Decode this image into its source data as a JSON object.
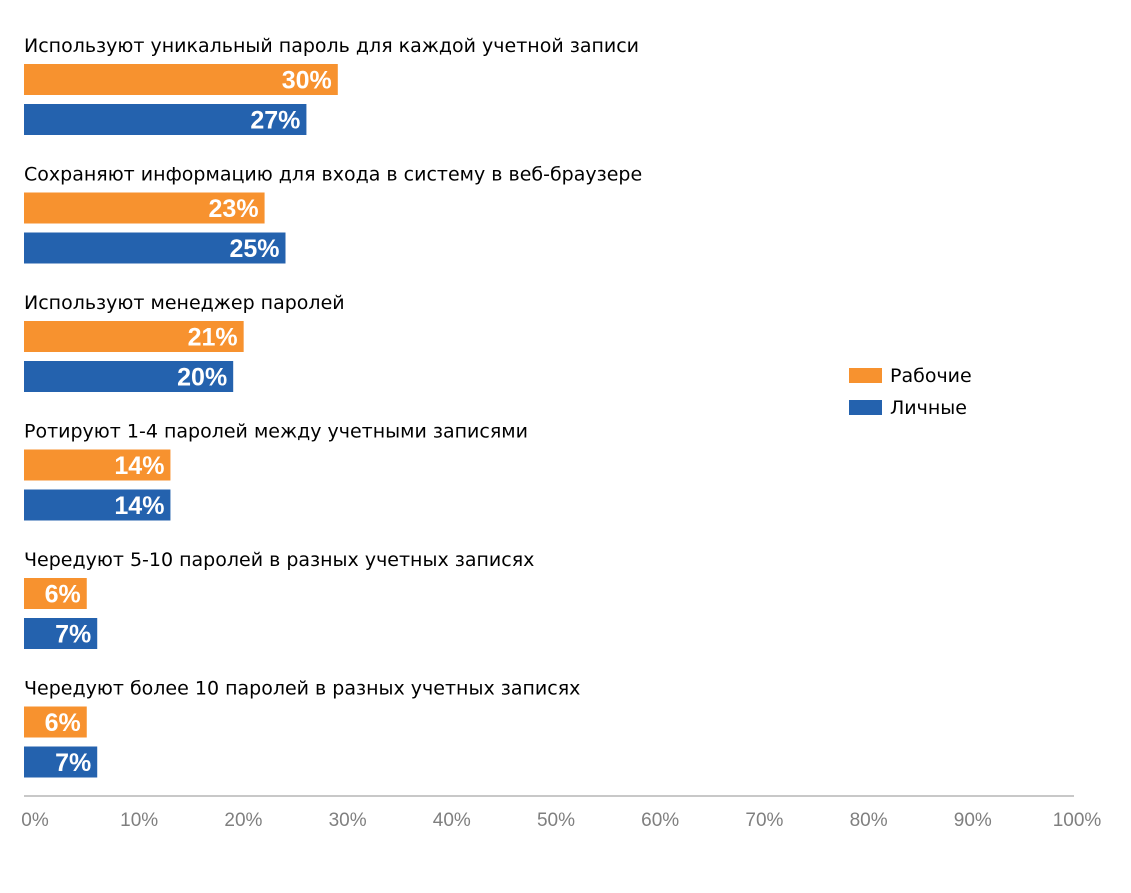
{
  "colors": {
    "work": "#F7922F",
    "personal": "#2462AE",
    "axis": "#c8c8c8",
    "tick": "#7f7f7f"
  },
  "chart_data": {
    "type": "bar",
    "orientation": "horizontal",
    "categories": [
      "Используют уникальный пароль для каждой учетной записи",
      "Сохраняют информацию для входа в систему в веб-браузере",
      "Используют менеджер паролей",
      "Ротируют 1-4 паролей между учетными записями",
      "Чередуют 5-10 паролей в разных учетных записях",
      "Чередуют более 10 паролей в разных учетных записях"
    ],
    "series": [
      {
        "name": "Рабочие",
        "values": [
          30,
          23,
          21,
          14,
          6,
          6
        ],
        "labels": [
          "30%",
          "23%",
          "21%",
          "14%",
          "6%",
          "6%"
        ]
      },
      {
        "name": "Личные",
        "values": [
          27,
          25,
          20,
          14,
          7,
          7
        ],
        "labels": [
          "27%",
          "25%",
          "20%",
          "14%",
          "7%",
          "7%"
        ]
      }
    ],
    "xlim": [
      0,
      100
    ],
    "ticks": [
      "0%",
      "10%",
      "20%",
      "30%",
      "40%",
      "50%",
      "60%",
      "70%",
      "80%",
      "90%",
      "100%"
    ],
    "legend": "right",
    "grid": false
  }
}
